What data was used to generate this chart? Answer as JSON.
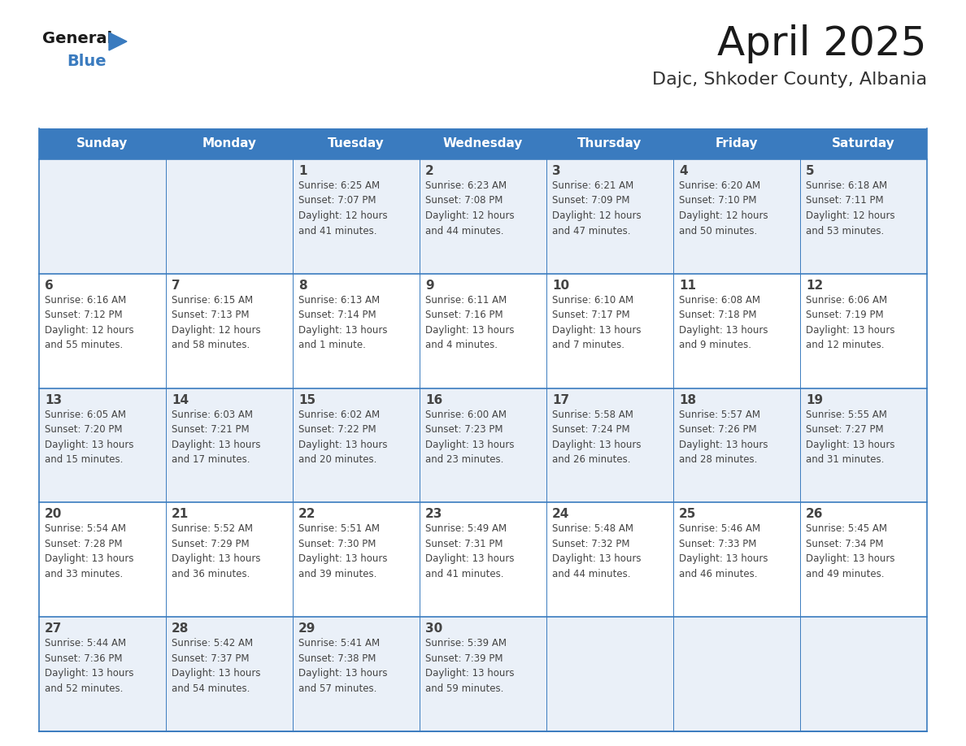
{
  "title": "April 2025",
  "subtitle": "Dajc, Shkoder County, Albania",
  "header_bg_color": "#3a7bbf",
  "header_text_color": "#ffffff",
  "cell_bg_even": "#eaf0f8",
  "cell_bg_odd": "#ffffff",
  "border_color": "#3a7bbf",
  "text_color": "#444444",
  "days_of_week": [
    "Sunday",
    "Monday",
    "Tuesday",
    "Wednesday",
    "Thursday",
    "Friday",
    "Saturday"
  ],
  "weeks": [
    [
      {
        "day": null,
        "info": null
      },
      {
        "day": null,
        "info": null
      },
      {
        "day": 1,
        "info": "Sunrise: 6:25 AM\nSunset: 7:07 PM\nDaylight: 12 hours\nand 41 minutes."
      },
      {
        "day": 2,
        "info": "Sunrise: 6:23 AM\nSunset: 7:08 PM\nDaylight: 12 hours\nand 44 minutes."
      },
      {
        "day": 3,
        "info": "Sunrise: 6:21 AM\nSunset: 7:09 PM\nDaylight: 12 hours\nand 47 minutes."
      },
      {
        "day": 4,
        "info": "Sunrise: 6:20 AM\nSunset: 7:10 PM\nDaylight: 12 hours\nand 50 minutes."
      },
      {
        "day": 5,
        "info": "Sunrise: 6:18 AM\nSunset: 7:11 PM\nDaylight: 12 hours\nand 53 minutes."
      }
    ],
    [
      {
        "day": 6,
        "info": "Sunrise: 6:16 AM\nSunset: 7:12 PM\nDaylight: 12 hours\nand 55 minutes."
      },
      {
        "day": 7,
        "info": "Sunrise: 6:15 AM\nSunset: 7:13 PM\nDaylight: 12 hours\nand 58 minutes."
      },
      {
        "day": 8,
        "info": "Sunrise: 6:13 AM\nSunset: 7:14 PM\nDaylight: 13 hours\nand 1 minute."
      },
      {
        "day": 9,
        "info": "Sunrise: 6:11 AM\nSunset: 7:16 PM\nDaylight: 13 hours\nand 4 minutes."
      },
      {
        "day": 10,
        "info": "Sunrise: 6:10 AM\nSunset: 7:17 PM\nDaylight: 13 hours\nand 7 minutes."
      },
      {
        "day": 11,
        "info": "Sunrise: 6:08 AM\nSunset: 7:18 PM\nDaylight: 13 hours\nand 9 minutes."
      },
      {
        "day": 12,
        "info": "Sunrise: 6:06 AM\nSunset: 7:19 PM\nDaylight: 13 hours\nand 12 minutes."
      }
    ],
    [
      {
        "day": 13,
        "info": "Sunrise: 6:05 AM\nSunset: 7:20 PM\nDaylight: 13 hours\nand 15 minutes."
      },
      {
        "day": 14,
        "info": "Sunrise: 6:03 AM\nSunset: 7:21 PM\nDaylight: 13 hours\nand 17 minutes."
      },
      {
        "day": 15,
        "info": "Sunrise: 6:02 AM\nSunset: 7:22 PM\nDaylight: 13 hours\nand 20 minutes."
      },
      {
        "day": 16,
        "info": "Sunrise: 6:00 AM\nSunset: 7:23 PM\nDaylight: 13 hours\nand 23 minutes."
      },
      {
        "day": 17,
        "info": "Sunrise: 5:58 AM\nSunset: 7:24 PM\nDaylight: 13 hours\nand 26 minutes."
      },
      {
        "day": 18,
        "info": "Sunrise: 5:57 AM\nSunset: 7:26 PM\nDaylight: 13 hours\nand 28 minutes."
      },
      {
        "day": 19,
        "info": "Sunrise: 5:55 AM\nSunset: 7:27 PM\nDaylight: 13 hours\nand 31 minutes."
      }
    ],
    [
      {
        "day": 20,
        "info": "Sunrise: 5:54 AM\nSunset: 7:28 PM\nDaylight: 13 hours\nand 33 minutes."
      },
      {
        "day": 21,
        "info": "Sunrise: 5:52 AM\nSunset: 7:29 PM\nDaylight: 13 hours\nand 36 minutes."
      },
      {
        "day": 22,
        "info": "Sunrise: 5:51 AM\nSunset: 7:30 PM\nDaylight: 13 hours\nand 39 minutes."
      },
      {
        "day": 23,
        "info": "Sunrise: 5:49 AM\nSunset: 7:31 PM\nDaylight: 13 hours\nand 41 minutes."
      },
      {
        "day": 24,
        "info": "Sunrise: 5:48 AM\nSunset: 7:32 PM\nDaylight: 13 hours\nand 44 minutes."
      },
      {
        "day": 25,
        "info": "Sunrise: 5:46 AM\nSunset: 7:33 PM\nDaylight: 13 hours\nand 46 minutes."
      },
      {
        "day": 26,
        "info": "Sunrise: 5:45 AM\nSunset: 7:34 PM\nDaylight: 13 hours\nand 49 minutes."
      }
    ],
    [
      {
        "day": 27,
        "info": "Sunrise: 5:44 AM\nSunset: 7:36 PM\nDaylight: 13 hours\nand 52 minutes."
      },
      {
        "day": 28,
        "info": "Sunrise: 5:42 AM\nSunset: 7:37 PM\nDaylight: 13 hours\nand 54 minutes."
      },
      {
        "day": 29,
        "info": "Sunrise: 5:41 AM\nSunset: 7:38 PM\nDaylight: 13 hours\nand 57 minutes."
      },
      {
        "day": 30,
        "info": "Sunrise: 5:39 AM\nSunset: 7:39 PM\nDaylight: 13 hours\nand 59 minutes."
      },
      {
        "day": null,
        "info": null
      },
      {
        "day": null,
        "info": null
      },
      {
        "day": null,
        "info": null
      }
    ]
  ],
  "fig_width": 11.88,
  "fig_height": 9.18
}
